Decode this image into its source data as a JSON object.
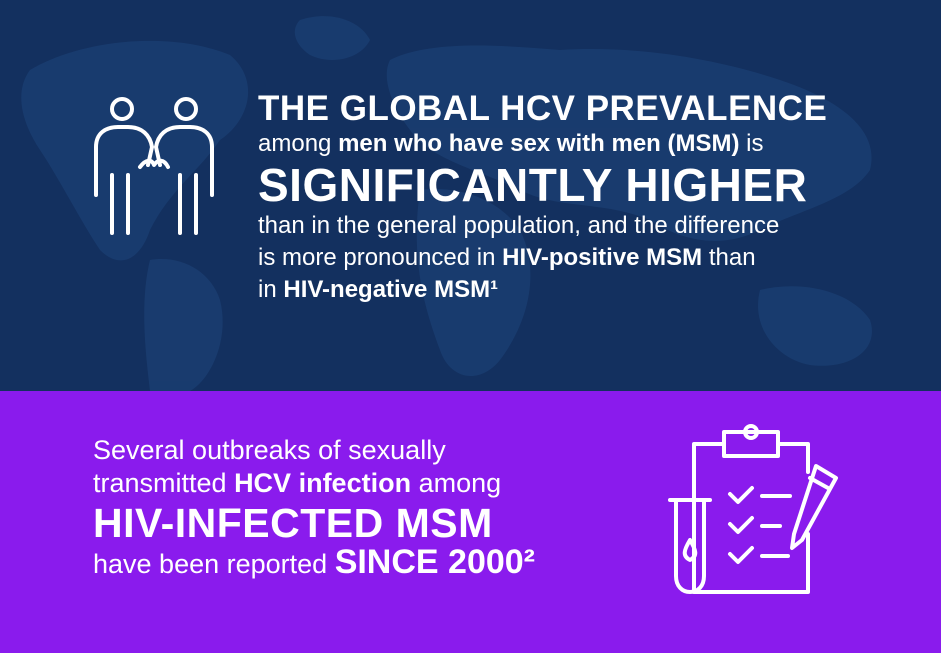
{
  "top": {
    "headline": "THE GLOBAL HCV PREVALENCE",
    "line2_pre": "among ",
    "line2_bold": "men who have sex with men (MSM)",
    "line2_post": " is",
    "emphasis": "SIGNIFICANTLY HIGHER",
    "line4": "than in the general population, and the difference",
    "line5_pre": "is more pronounced in ",
    "line5_bold": "HIV-positive MSM",
    "line5_post": " than",
    "line6_pre": "in ",
    "line6_bold": "HIV-negative MSM¹",
    "icon": "two-people-icon",
    "background_color": "#13305f"
  },
  "bottom": {
    "line1": "Several outbreaks of sexually",
    "line2_pre": "transmitted ",
    "line2_bold": "HCV infection",
    "line2_post": " among",
    "emphasis": "HIV-INFECTED MSM",
    "line4_pre": "have been reported ",
    "line4_bold": "SINCE 2000²",
    "icon": "clipboard-checklist-test-tube-icon",
    "background_color": "#8a1bed"
  }
}
